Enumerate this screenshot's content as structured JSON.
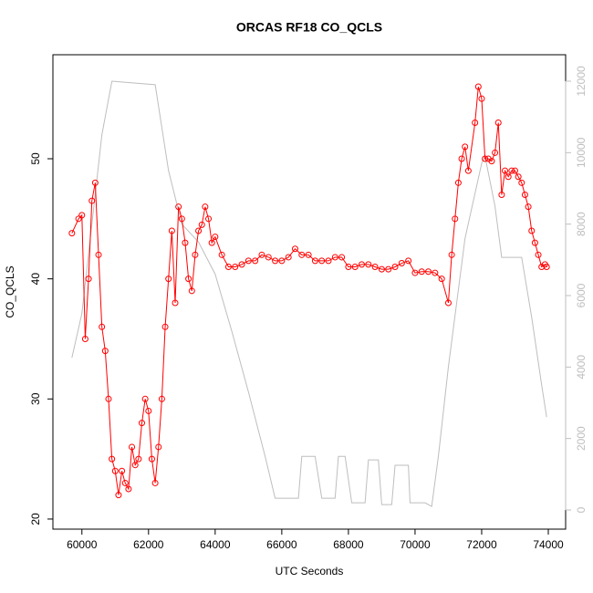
{
  "chart_data": {
    "type": "line",
    "title": "ORCAS RF18 CO_QCLS",
    "xlabel": "UTC Seconds",
    "ylabel": "CO_QCLS",
    "xlim": [
      59130,
      74520
    ],
    "xticks": [
      60000,
      62000,
      64000,
      66000,
      68000,
      70000,
      72000,
      74000
    ],
    "ylim": [
      19.16,
      58.66
    ],
    "yticks": [
      20,
      30,
      40,
      50
    ],
    "y2lim": [
      -536,
      12740
    ],
    "y2ticks": [
      0,
      2000,
      4000,
      6000,
      8000,
      10000,
      12000
    ],
    "series": [
      {
        "color": "#ff0000",
        "markers": true,
        "x": [
          59700,
          59900,
          60000,
          60100,
          60200,
          60300,
          60400,
          60500,
          60600,
          60700,
          60800,
          60900,
          61000,
          61100,
          61200,
          61300,
          61400,
          61500,
          61600,
          61700,
          61800,
          61900,
          62000,
          62100,
          62200,
          62300,
          62400,
          62500,
          62600,
          62700,
          62800,
          62900,
          63000,
          63100,
          63200,
          63300,
          63400,
          63500,
          63600,
          63700,
          63800,
          63900,
          64000,
          64200,
          64400,
          64600,
          64800,
          65000,
          65200,
          65400,
          65600,
          65800,
          66000,
          66200,
          66400,
          66600,
          66800,
          67000,
          67200,
          67400,
          67600,
          67800,
          68000,
          68200,
          68400,
          68600,
          68800,
          69000,
          69200,
          69400,
          69600,
          69800,
          70000,
          70200,
          70400,
          70600,
          70800,
          71000,
          71100,
          71200,
          71300,
          71400,
          71500,
          71600,
          71800,
          71900,
          72000,
          72100,
          72200,
          72300,
          72400,
          72500,
          72600,
          72700,
          72800,
          72900,
          73000,
          73100,
          73200,
          73300,
          73400,
          73500,
          73600,
          73700,
          73800,
          73900,
          73950
        ],
        "values": [
          43.8,
          45,
          45.3,
          35,
          40,
          46.5,
          48,
          42,
          36,
          34,
          30,
          25,
          24,
          22,
          24,
          23,
          22.5,
          26,
          24.5,
          25,
          28,
          30,
          29,
          25,
          23,
          26,
          30,
          36,
          40,
          44,
          38,
          46,
          45,
          43,
          40,
          39,
          42,
          44,
          44.5,
          46,
          45,
          43,
          43.5,
          42,
          41,
          41,
          41.2,
          41.5,
          41.5,
          42,
          41.8,
          41.5,
          41.5,
          41.8,
          42.5,
          42,
          42,
          41.5,
          41.5,
          41.5,
          41.8,
          41.8,
          41,
          41,
          41.2,
          41.2,
          41,
          40.8,
          40.8,
          41,
          41.3,
          41.5,
          40.5,
          40.6,
          40.6,
          40.5,
          40,
          38,
          42,
          45,
          48,
          50,
          51,
          49,
          53,
          56,
          55,
          50,
          50,
          49.8,
          50.5,
          53,
          47,
          49,
          48.5,
          49,
          49,
          48.5,
          48,
          47,
          46,
          44,
          43,
          42,
          41,
          41.2,
          41
        ]
      },
      {
        "color": "#bebebe",
        "axis": "y2",
        "markers": false,
        "x": [
          59700,
          60000,
          60300,
          60600,
          60900,
          62200,
          62600,
          63000,
          63500,
          64000,
          64500,
          65000,
          65500,
          65800,
          66500,
          66600,
          67000,
          67200,
          67600,
          67700,
          67900,
          68100,
          68500,
          68600,
          68900,
          69000,
          69300,
          69400,
          69800,
          69850,
          70300,
          70500,
          70700,
          71000,
          71500,
          72000,
          72100,
          72400,
          72600,
          73200,
          73500,
          73800,
          73950
        ],
        "values": [
          4260,
          5500,
          8000,
          10500,
          12000,
          11900,
          9500,
          8000,
          7500,
          6600,
          5000,
          3300,
          1500,
          330,
          330,
          1500,
          1500,
          330,
          330,
          1500,
          1500,
          200,
          200,
          1400,
          1400,
          150,
          150,
          1250,
          1250,
          200,
          200,
          100,
          1500,
          4000,
          7600,
          9700,
          9900,
          8500,
          7070,
          7070,
          5400,
          3500,
          2600
        ]
      }
    ]
  }
}
